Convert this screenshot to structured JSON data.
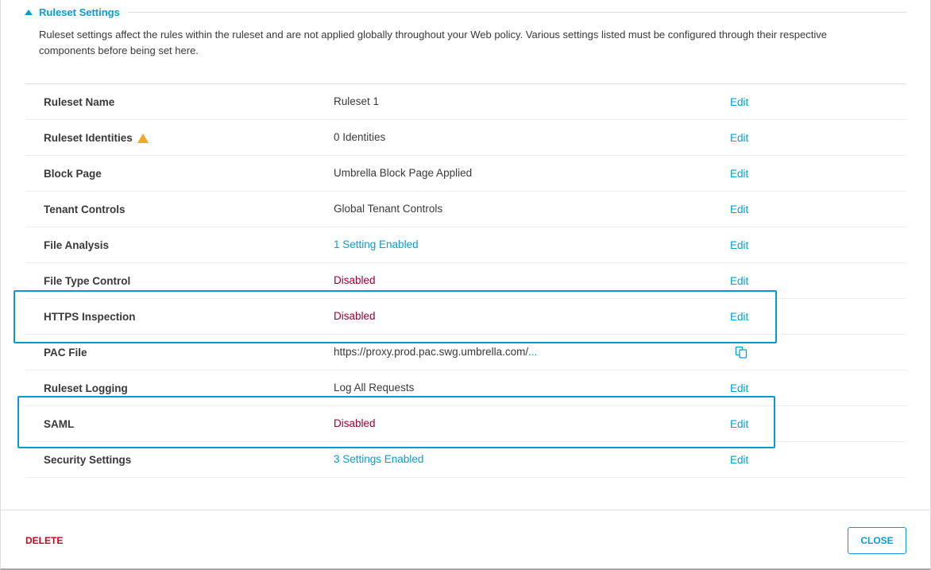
{
  "section": {
    "title": "Ruleset Settings",
    "description": "Ruleset settings affect the rules within the ruleset and are not applied globally throughout your Web policy. Various settings listed must be configured through their respective components before being set here."
  },
  "rows": [
    {
      "label": "Ruleset Name",
      "value": "Ruleset 1",
      "style": "normal",
      "action": "Edit"
    },
    {
      "label": "Ruleset Identities",
      "value": "0 Identities",
      "style": "normal",
      "action": "Edit",
      "warning": true
    },
    {
      "label": "Block Page",
      "value": "Umbrella Block Page Applied",
      "style": "normal",
      "action": "Edit"
    },
    {
      "label": "Tenant Controls",
      "value": "Global Tenant Controls",
      "style": "normal",
      "action": "Edit"
    },
    {
      "label": "File Analysis",
      "value": "1 Setting Enabled",
      "style": "blue",
      "action": "Edit"
    },
    {
      "label": "File Type Control",
      "value": "Disabled",
      "style": "red",
      "action": "Edit"
    },
    {
      "label": "HTTPS Inspection",
      "value": "Disabled",
      "style": "red",
      "action": "Edit"
    },
    {
      "label": "PAC File",
      "value": "https://proxy.prod.pac.swg.umbrella.com/",
      "ellipsis": "...",
      "style": "normal",
      "action": "copy-icon"
    },
    {
      "label": "Ruleset Logging",
      "value": "Log All Requests",
      "style": "normal",
      "action": "Edit"
    },
    {
      "label": "SAML",
      "value": "Disabled",
      "style": "red",
      "action": "Edit"
    },
    {
      "label": "Security Settings",
      "value": "3 Settings Enabled",
      "style": "blue",
      "action": "Edit"
    }
  ],
  "footer": {
    "delete": "DELETE",
    "close": "CLOSE"
  },
  "colors": {
    "accent": "#049fd9",
    "danger": "#d0021b",
    "disabled": "#a00030",
    "highlight": "#0a9ad3"
  }
}
